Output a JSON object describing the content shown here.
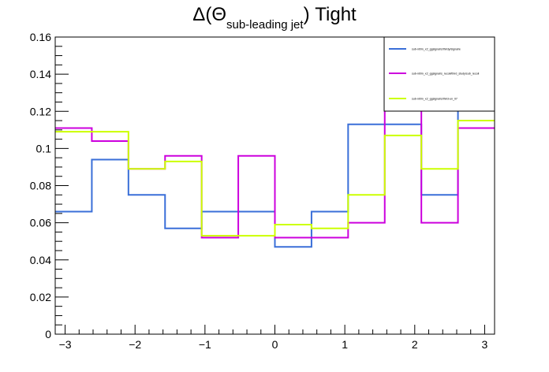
{
  "chart_data": {
    "type": "line",
    "style": "step-histogram",
    "title": {
      "prefix": "Δ(Θ",
      "subscript": "sub-leading jet",
      "suffix": ") Tight"
    },
    "xlim": [
      -3.1416,
      3.1416
    ],
    "ylim": [
      0,
      0.16
    ],
    "x_tick_labels": [
      "−3",
      "−2",
      "−1",
      "0",
      "1",
      "2",
      "3"
    ],
    "x_tick_values": [
      -3,
      -2,
      -1,
      0,
      1,
      2,
      3
    ],
    "y_tick_labels": [
      "0",
      "0.02",
      "0.04",
      "0.06",
      "0.08",
      "0.1",
      "0.12",
      "0.14",
      "0.16"
    ],
    "y_tick_values": [
      0,
      0.02,
      0.04,
      0.06,
      0.08,
      0.1,
      0.12,
      0.14,
      0.16
    ],
    "bin_edges": [
      -3.1416,
      -2.618,
      -2.0944,
      -1.5708,
      -1.0472,
      -0.5236,
      0,
      0.5236,
      1.0472,
      1.5708,
      2.0944,
      2.618,
      3.1416
    ],
    "grid": false,
    "legend_position": "top-right",
    "series": [
      {
        "name": "sub-nl0m_x2_ggsignal/s/thirdy/signal/e",
        "color": "#3a6fd8",
        "values": [
          0.066,
          0.094,
          0.075,
          0.057,
          0.066,
          0.066,
          0.047,
          0.066,
          0.113,
          0.113,
          0.075,
          0.16
        ]
      },
      {
        "name": "sub-nl0m_x2_ggsignal/s_recoil/third_study/sub_recoil",
        "color": "#cc00dd",
        "values": [
          0.111,
          0.104,
          0.089,
          0.096,
          0.052,
          0.096,
          0.052,
          0.052,
          0.06,
          0.126,
          0.06,
          0.111
        ]
      },
      {
        "name": "sub-nl0m_x2_ggsignal/s/third-un_07",
        "color": "#ccff00",
        "values": [
          0.109,
          0.109,
          0.089,
          0.093,
          0.053,
          0.053,
          0.059,
          0.057,
          0.075,
          0.107,
          0.089,
          0.115
        ]
      }
    ]
  }
}
